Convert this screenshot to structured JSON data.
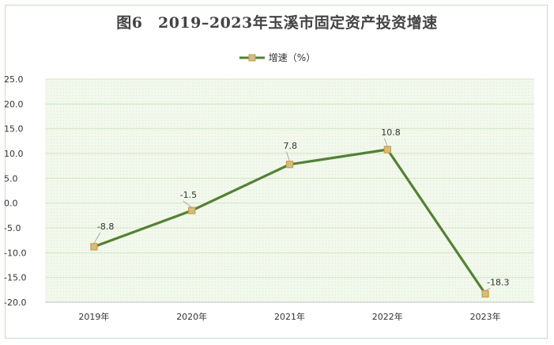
{
  "title": "图6　2019–2023年玉溪市固定资产投资增速",
  "chart_data": {
    "type": "line",
    "title": "图6　2019–2023年玉溪市固定资产投资增速",
    "categories": [
      "2019年",
      "2020年",
      "2021年",
      "2022年",
      "2023年"
    ],
    "series": [
      {
        "name": "增速（%）",
        "values": [
          -8.8,
          -1.5,
          7.8,
          10.8,
          -18.3
        ],
        "labels": [
          "-8.8",
          "-1.5",
          "7.8",
          "10.8",
          "-18.3"
        ]
      }
    ],
    "yticks": [
      "25.0",
      "20.0",
      "15.0",
      "10.0",
      "5.0",
      "0.0",
      "-5.0",
      "-10.0",
      "-15.0",
      "-20.0"
    ],
    "ylim": [
      -20,
      25
    ],
    "xlabel": "",
    "ylabel": "",
    "legend_position": "top-center",
    "colors": {
      "line": "#538135",
      "marker_fill": "#c9c08a",
      "marker_stroke": "#d79a3c",
      "plot_background": "#f2f8ec",
      "grid": "#d3e6c6",
      "leader": "#9a9a9a"
    }
  }
}
